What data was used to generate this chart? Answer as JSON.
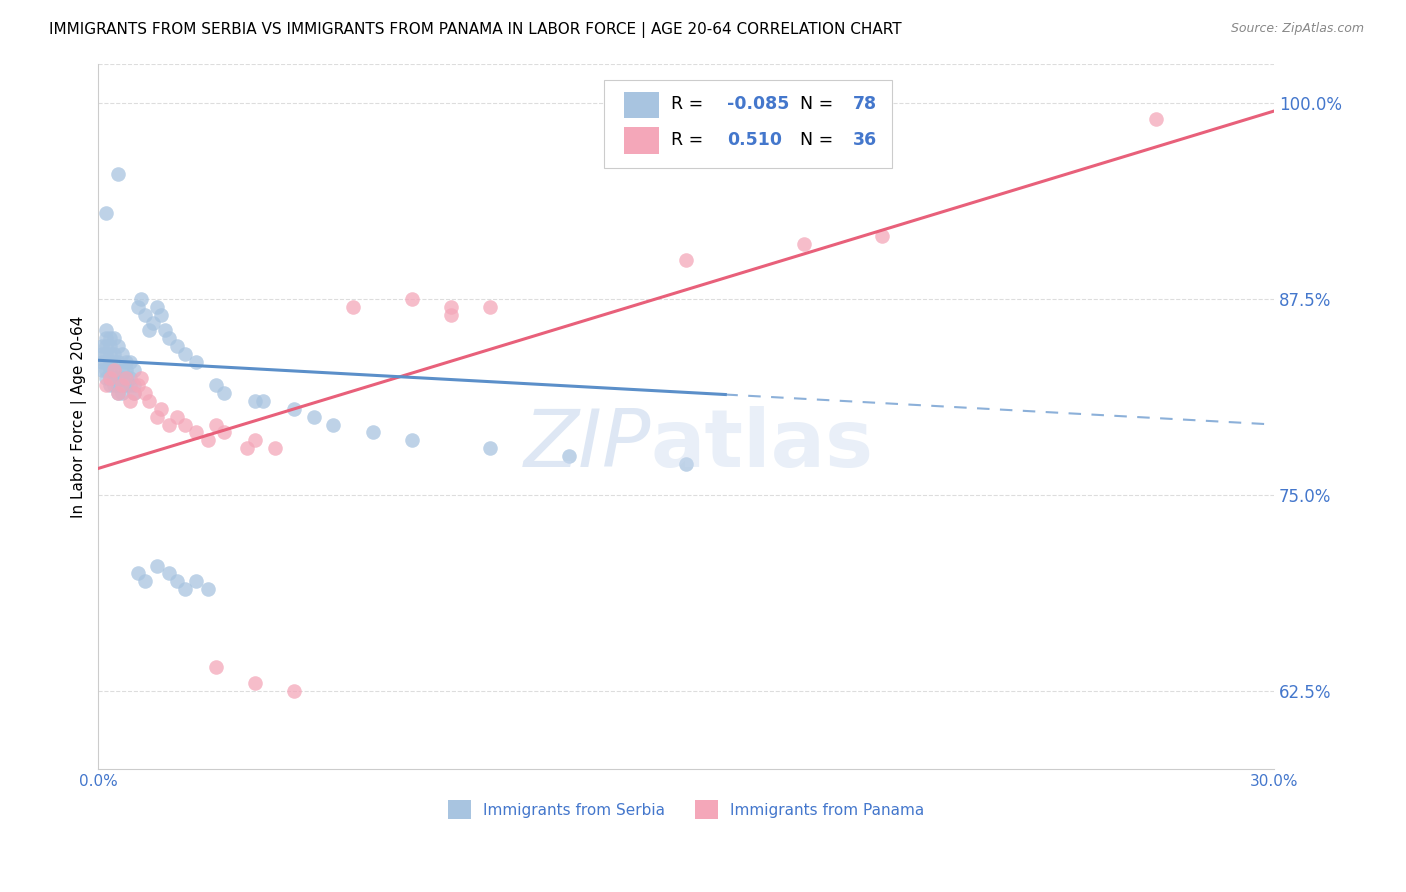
{
  "title": "IMMIGRANTS FROM SERBIA VS IMMIGRANTS FROM PANAMA IN LABOR FORCE | AGE 20-64 CORRELATION CHART",
  "source": "Source: ZipAtlas.com",
  "ylabel": "In Labor Force | Age 20-64",
  "xlim": [
    0.0,
    0.3
  ],
  "ylim": [
    0.575,
    1.025
  ],
  "yticks": [
    0.625,
    0.75,
    0.875,
    1.0
  ],
  "ytick_labels": [
    "62.5%",
    "75.0%",
    "87.5%",
    "100.0%"
  ],
  "xticks": [
    0.0,
    0.05,
    0.1,
    0.15,
    0.2,
    0.25,
    0.3
  ],
  "xtick_labels": [
    "0.0%",
    "",
    "",
    "",
    "",
    "",
    "30.0%"
  ],
  "serbia_color": "#a8c4e0",
  "panama_color": "#f4a7b9",
  "serbia_R": -0.085,
  "serbia_N": 78,
  "panama_R": 0.51,
  "panama_N": 36,
  "serbia_line_color": "#5b8fc9",
  "panama_line_color": "#e8607a",
  "serbia_line_solid_end": 0.16,
  "serbia_line_y0": 0.836,
  "serbia_line_y1": 0.795,
  "panama_line_y0": 0.767,
  "panama_line_y1": 0.995,
  "watermark_color": "#c8d8ee",
  "background_color": "#ffffff",
  "grid_color": "#dddddd",
  "title_fontsize": 11,
  "right_axis_color": "#4477cc"
}
